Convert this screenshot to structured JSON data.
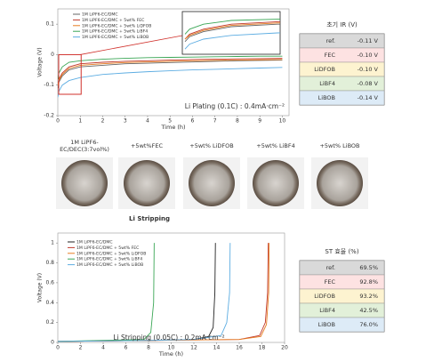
{
  "chart_data": [
    {
      "type": "line",
      "xlabel": "Time (h)",
      "ylabel": "Voltage (V)",
      "annotation": "Li Plating (0.1C) : 0.4mA·cm⁻²",
      "x": [
        0,
        0.05,
        0.2,
        0.5,
        1,
        2,
        3,
        4,
        5,
        6,
        7,
        8,
        9,
        10
      ],
      "xlim": [
        0,
        10.3
      ],
      "xticks": [
        0,
        1,
        2,
        3,
        4,
        5,
        6,
        7,
        8,
        9,
        10
      ],
      "ylim": [
        -0.2,
        0.15
      ],
      "yticks": [
        -0.2,
        -0.1,
        0,
        0.1
      ],
      "series": [
        {
          "name": "1M LiPF6-EC/DMC",
          "color": "#666666",
          "values": [
            -0.11,
            -0.09,
            -0.07,
            -0.05,
            -0.04,
            -0.035,
            -0.03,
            -0.028,
            -0.026,
            -0.024,
            -0.022,
            -0.02,
            -0.019,
            -0.018
          ]
        },
        {
          "name": "1M LiPF6-EC/DMC + 5wt% FEC",
          "color": "#c0392b",
          "values": [
            -0.1,
            -0.08,
            -0.06,
            -0.04,
            -0.03,
            -0.025,
            -0.022,
            -0.02,
            -0.018,
            -0.016,
            -0.015,
            -0.014,
            -0.013,
            -0.012
          ]
        },
        {
          "name": "1M LiPF6-EC/DMC + 5wt% LiDFOB",
          "color": "#e67e22",
          "values": [
            -0.1,
            -0.085,
            -0.065,
            -0.045,
            -0.035,
            -0.03,
            -0.026,
            -0.024,
            -0.022,
            -0.02,
            -0.019,
            -0.018,
            -0.017,
            -0.016
          ]
        },
        {
          "name": "1M LiPF6-EC/DMC + 5wt% LiBF4",
          "color": "#3aa655",
          "values": [
            -0.08,
            -0.06,
            -0.04,
            -0.025,
            -0.02,
            -0.015,
            -0.012,
            -0.01,
            -0.009,
            -0.008,
            -0.007,
            -0.006,
            -0.005,
            -0.005
          ]
        },
        {
          "name": "1M LiPF6-EC/DMC + 5wt% LiBOB",
          "color": "#5dade2",
          "values": [
            -0.14,
            -0.12,
            -0.1,
            -0.085,
            -0.075,
            -0.065,
            -0.06,
            -0.056,
            -0.053,
            -0.05,
            -0.048,
            -0.046,
            -0.044,
            -0.042
          ]
        }
      ]
    },
    {
      "type": "line",
      "xlabel": "Time (h)",
      "ylabel": "Voltage (V)",
      "annotation": "Li Stripping (0.05C) : 0.2mA·cm⁻²",
      "xlim": [
        0,
        20
      ],
      "xticks": [
        0,
        2,
        4,
        6,
        8,
        10,
        12,
        14,
        16,
        18,
        20
      ],
      "ylim": [
        0,
        1.1
      ],
      "yticks": [
        0,
        0.2,
        0.4,
        0.6,
        0.8,
        1
      ],
      "series": [
        {
          "name": "1M LiPF6-EC/DMC",
          "color": "#222222",
          "x": [
            0,
            4,
            8,
            12,
            13.3,
            13.7,
            13.85,
            13.9
          ],
          "values": [
            0.01,
            0.015,
            0.02,
            0.03,
            0.06,
            0.15,
            0.5,
            1
          ]
        },
        {
          "name": "1M LiPF6-EC/DMC + 5wt% FEC",
          "color": "#c0392b",
          "x": [
            0,
            4,
            8,
            12,
            16,
            17.8,
            18.3,
            18.5,
            18.56
          ],
          "values": [
            0.01,
            0.015,
            0.02,
            0.025,
            0.03,
            0.07,
            0.2,
            0.5,
            1
          ]
        },
        {
          "name": "1M LiPF6-EC/DMC + 5wt% LiDFOB",
          "color": "#e67e22",
          "x": [
            0,
            4,
            8,
            12,
            16,
            17.9,
            18.4,
            18.6,
            18.64
          ],
          "values": [
            0.01,
            0.015,
            0.02,
            0.025,
            0.03,
            0.06,
            0.18,
            0.5,
            1
          ]
        },
        {
          "name": "1M LiPF6-EC/DMC + 5wt% LiBF4",
          "color": "#3aa655",
          "x": [
            0,
            4,
            7.6,
            8.2,
            8.45,
            8.5
          ],
          "values": [
            0.01,
            0.02,
            0.03,
            0.1,
            0.4,
            1
          ]
        },
        {
          "name": "1M LiPF6-EC/DMC + 5wt% LiBOB",
          "color": "#5dade2",
          "x": [
            0,
            4,
            8,
            12,
            14.4,
            14.9,
            15.15,
            15.2
          ],
          "values": [
            0.01,
            0.015,
            0.02,
            0.03,
            0.07,
            0.2,
            0.5,
            1
          ]
        }
      ]
    }
  ],
  "section_title": "Li Stripping",
  "photos": {
    "labels": [
      [
        "1M LiPF6-",
        "EC/DEC(3:7vol%)"
      ],
      [
        "+5wt%FEC"
      ],
      [
        "+5wt% LiDFOB"
      ],
      [
        "+5wt% LiBF4"
      ],
      [
        "+5wt% LiBOB"
      ]
    ]
  },
  "tables": [
    {
      "title": "초기 IR (V)",
      "rows": [
        [
          "ref.",
          "-0.11 V"
        ],
        [
          "FEC",
          "-0.10 V"
        ],
        [
          "LiDFOB",
          "-0.10 V"
        ],
        [
          "LiBF4",
          "-0.08 V"
        ],
        [
          "LiBOB",
          "-0.14 V"
        ]
      ],
      "row_colors": [
        "#d9d9d9",
        "#fde2e2",
        "#fdf3d0",
        "#e2f0d9",
        "#ddebf7"
      ]
    },
    {
      "title": "ST 효율 (%)",
      "rows": [
        [
          "ref.",
          "69.5%"
        ],
        [
          "FEC",
          "92.8%"
        ],
        [
          "LiDFOB",
          "93.2%"
        ],
        [
          "LiBF4",
          "42.5%"
        ],
        [
          "LiBOB",
          "76.0%"
        ]
      ],
      "row_colors": [
        "#d9d9d9",
        "#fde2e2",
        "#fdf3d0",
        "#e2f0d9",
        "#ddebf7"
      ]
    }
  ]
}
